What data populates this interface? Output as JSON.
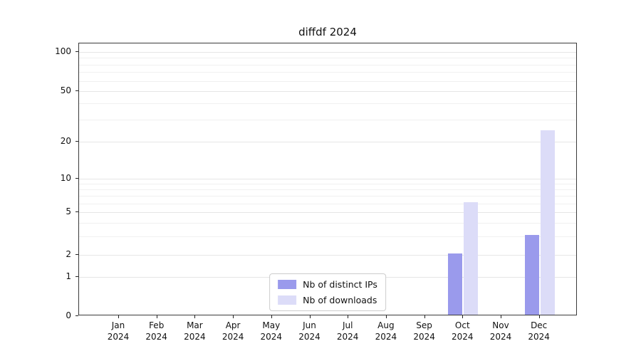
{
  "chart_data": {
    "type": "bar",
    "title": "diffdf 2024",
    "months": [
      "Jan",
      "Feb",
      "Mar",
      "Apr",
      "May",
      "Jun",
      "Jul",
      "Aug",
      "Sep",
      "Oct",
      "Nov",
      "Dec"
    ],
    "year_label": "2024",
    "y_ticks": [
      0,
      1,
      2,
      5,
      10,
      20,
      50,
      100
    ],
    "y_minor_gridlines": [
      3,
      4,
      6,
      7,
      8,
      9,
      30,
      40,
      60,
      70,
      80,
      90
    ],
    "ylim": [
      0,
      120
    ],
    "yscale": "log above 1, linear 0-1",
    "grid": true,
    "legend_position": "lower center",
    "series": [
      {
        "name": "Nb of distinct IPs",
        "color": "#9a9aec",
        "values": [
          0,
          0,
          0,
          0,
          0,
          0,
          0,
          0,
          0,
          2,
          0,
          3
        ]
      },
      {
        "name": "Nb of downloads",
        "color": "#dcdcf8",
        "values": [
          0,
          0,
          0,
          0,
          0,
          0,
          0,
          0,
          0,
          6,
          0,
          24
        ]
      }
    ]
  }
}
